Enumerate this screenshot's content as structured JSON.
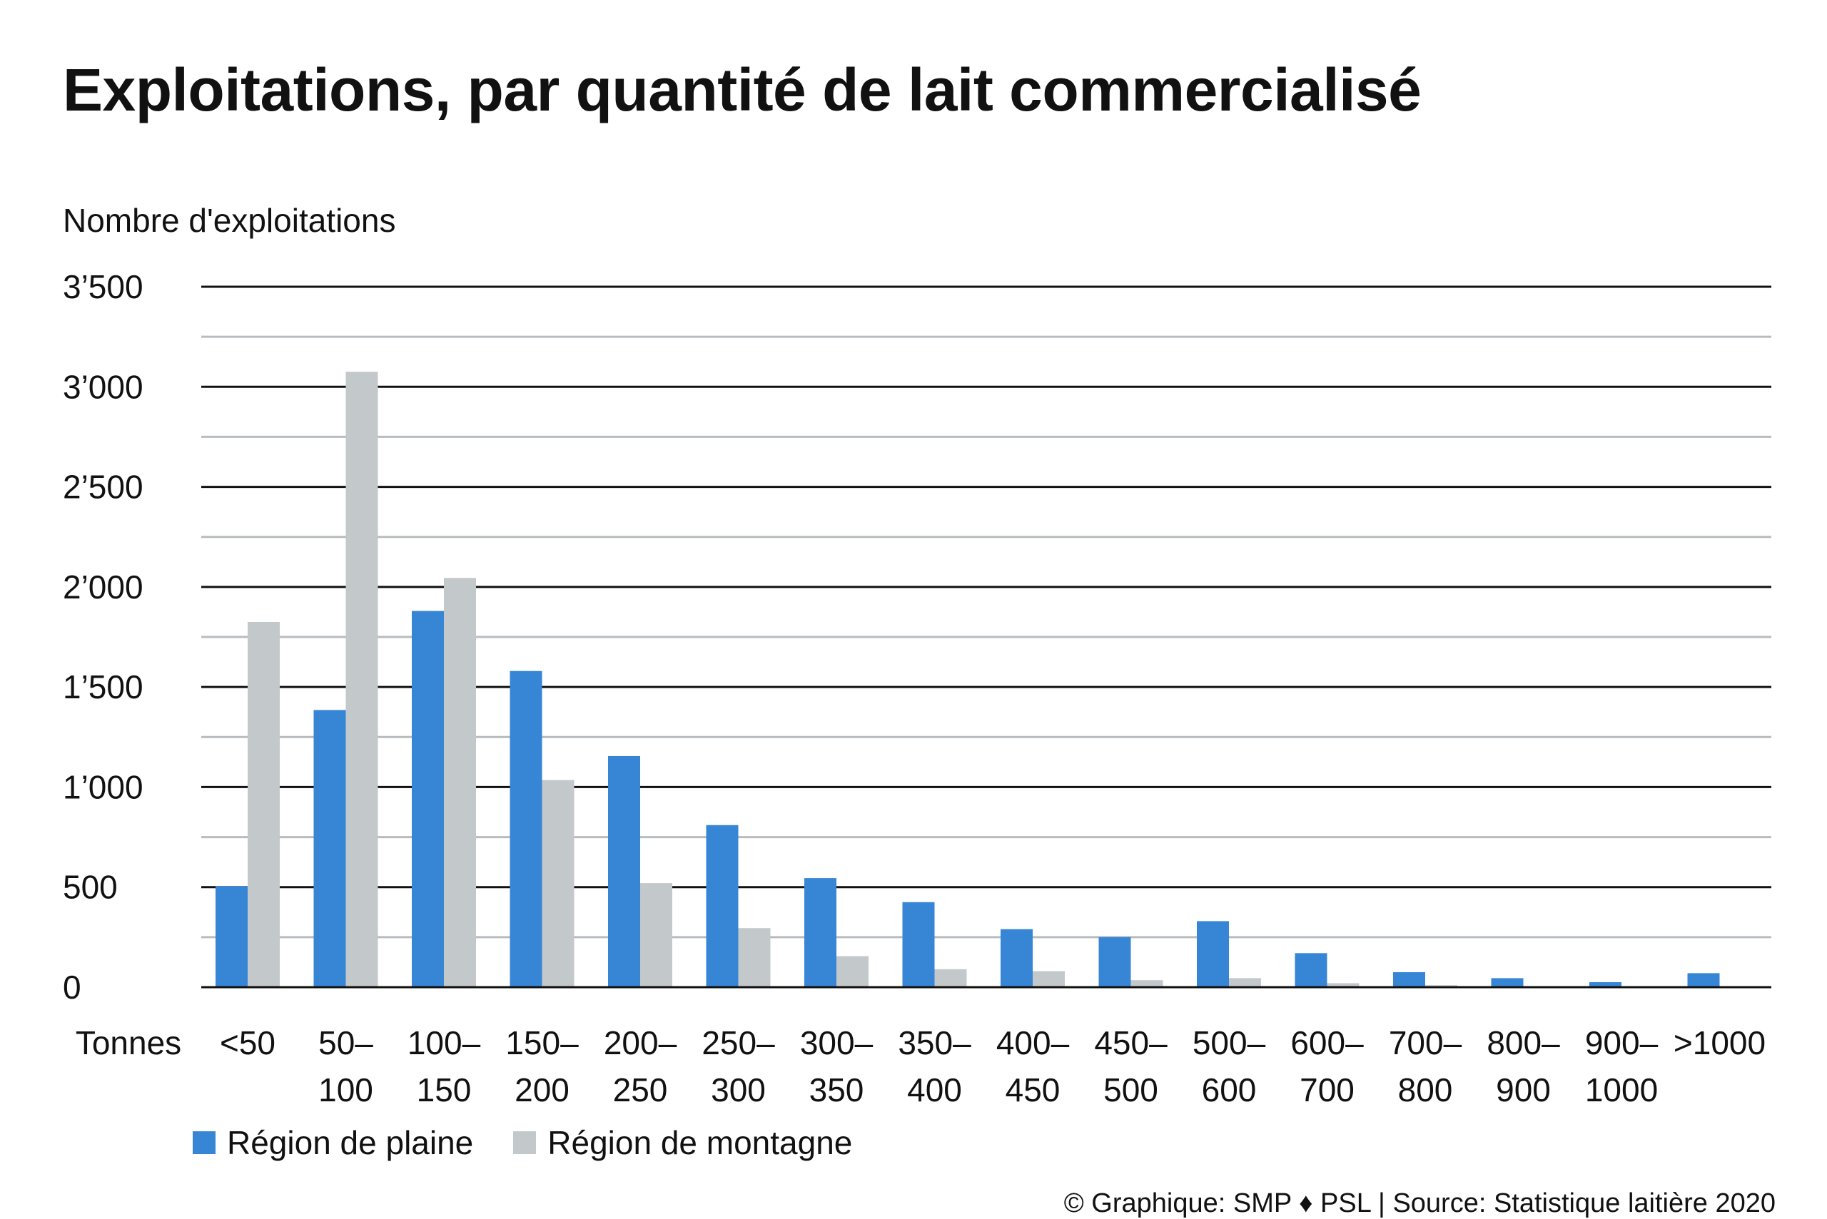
{
  "title": "Exploitations, par quantité de lait commercialisé",
  "source": "© Graphique: SMP ♦ PSL | Source: Statistique laitière 2020",
  "colors": {
    "plaine": "#3786d6",
    "montagne": "#c3c8cb",
    "major_grid": "#111111",
    "minor_grid": "#b8bcbf"
  },
  "chart_data": {
    "type": "bar",
    "title": "Exploitations, par quantité de lait commercialisé",
    "ylabel": "Nombre d'exploitations",
    "xlabel": "Tonnes",
    "ylim": [
      0,
      3500
    ],
    "yticks": [
      {
        "value": 0,
        "label": "0"
      },
      {
        "value": 500,
        "label": "500"
      },
      {
        "value": 1000,
        "label": "1’000"
      },
      {
        "value": 1500,
        "label": "1’500"
      },
      {
        "value": 2000,
        "label": "2’000"
      },
      {
        "value": 2500,
        "label": "2’500"
      },
      {
        "value": 3000,
        "label": "3’000"
      },
      {
        "value": 3500,
        "label": "3’500"
      }
    ],
    "minor_gridlines": [
      250,
      750,
      1250,
      1750,
      2250,
      2750,
      3250
    ],
    "grid": true,
    "legend_position": "bottom-left",
    "categories": [
      [
        "<50"
      ],
      [
        "50–",
        "100"
      ],
      [
        "100–",
        "150"
      ],
      [
        "150–",
        "200"
      ],
      [
        "200–",
        "250"
      ],
      [
        "250–",
        "300"
      ],
      [
        "300–",
        "350"
      ],
      [
        "350–",
        "400"
      ],
      [
        "400–",
        "450"
      ],
      [
        "450–",
        "500"
      ],
      [
        "500–",
        "600"
      ],
      [
        "600–",
        "700"
      ],
      [
        "700–",
        "800"
      ],
      [
        "800–",
        "900"
      ],
      [
        "900–",
        "1000"
      ],
      [
        ">1000"
      ]
    ],
    "series": [
      {
        "name": "Région de plaine",
        "color": "#3786d6",
        "values": [
          505,
          1385,
          1880,
          1580,
          1155,
          810,
          545,
          425,
          290,
          250,
          330,
          170,
          75,
          45,
          25,
          70
        ]
      },
      {
        "name": "Région de montagne",
        "color": "#c3c8cb",
        "values": [
          1825,
          3075,
          2045,
          1035,
          520,
          295,
          155,
          90,
          80,
          35,
          45,
          20,
          10,
          5,
          3,
          2
        ]
      }
    ]
  }
}
